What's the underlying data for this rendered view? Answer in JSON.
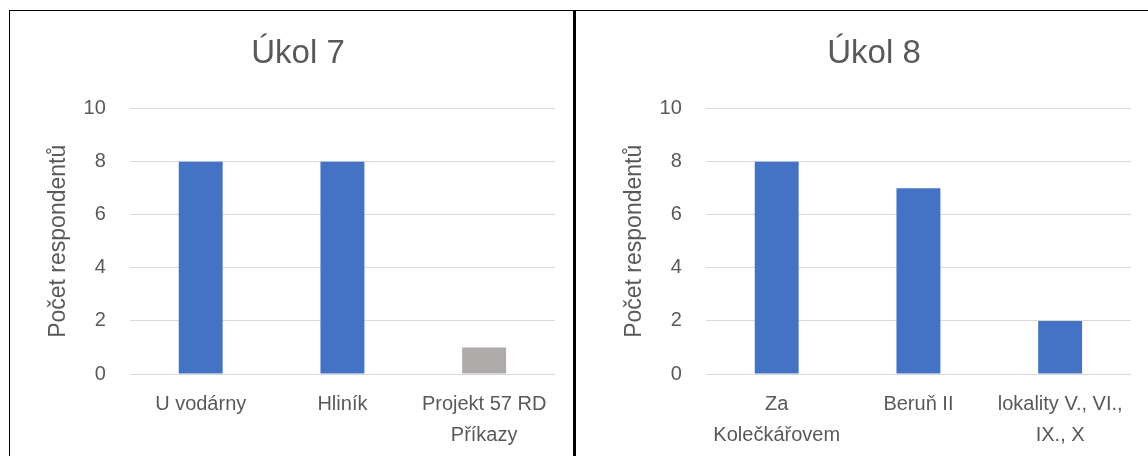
{
  "chart_data": [
    {
      "type": "bar",
      "title": "Úkol 7",
      "ylabel": "Počet respondentů",
      "categories": [
        "U vodárny",
        "Hliník",
        "Projekt 57 RD Příkazy"
      ],
      "values": [
        8,
        8,
        1
      ],
      "colors": [
        "#4472c4",
        "#4472c4",
        "#aeaaaa"
      ],
      "ylim": [
        0,
        10
      ],
      "yticks": [
        0,
        2,
        4,
        6,
        8,
        10
      ],
      "grid": "y"
    },
    {
      "type": "bar",
      "title": "Úkol 8",
      "ylabel": "Počet respondentů",
      "categories": [
        "Za Kolečkářovem",
        "Beruň II",
        "lokality V., VI., IX., X"
      ],
      "values": [
        8,
        7,
        2
      ],
      "colors": [
        "#4472c4",
        "#4472c4",
        "#4472c4"
      ],
      "ylim": [
        0,
        10
      ],
      "yticks": [
        0,
        2,
        4,
        6,
        8,
        10
      ],
      "grid": "y"
    }
  ]
}
